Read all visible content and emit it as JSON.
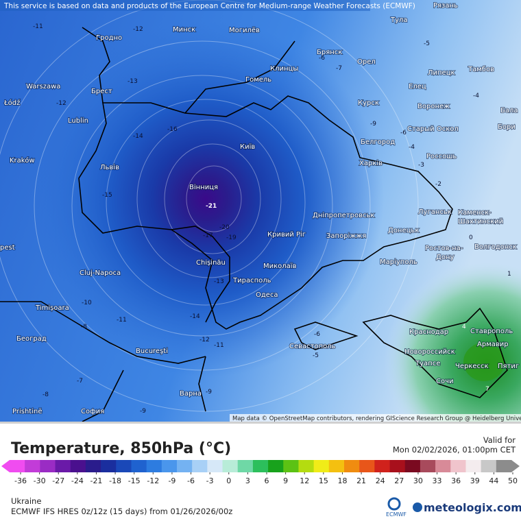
{
  "header": {
    "notice": "This service is based on data and products of the European Centre for Medium-range Weather Forecasts (ECMWF)"
  },
  "map": {
    "attribution": "Map data © OpenStreetMap contributors, rendering GIScience Research Group @ Heidelberg University",
    "cities": [
      "Гродно",
      "Минск",
      "Могилёв",
      "Тула",
      "Рязань",
      "Warszawa",
      "Брест",
      "Гомель",
      "Клинцы",
      "Брянск",
      "Орел",
      "Липецк",
      "Тамбов",
      "Łódź",
      "Lublin",
      "Елец",
      "Курск",
      "Воронеж",
      "Старый Оскол",
      "Kraków",
      "Львів",
      "Київ",
      "Белгород",
      "Харків",
      "Россошь",
      "Вінниця",
      "Луганськ",
      "Каменск-",
      "Шахтинский",
      "Дніпропетровськ",
      "Донецьк",
      "Кривий Ріг",
      "Запоріжжя",
      "Ростов-на-",
      "Дону",
      "Волгодонск",
      "Chișinău",
      "Cluj-Napoca",
      "Миколаїв",
      "Маріуполь",
      "Тирасполь",
      "Одеса",
      "Timișoara",
      "Краснодар",
      "Ставрополь",
      "Армавир",
      "Београд",
      "Севастополь",
      "Новороссийск",
      "Bucureşti",
      "Туапсе",
      "Черкесск",
      "Пятиг",
      "Сочи",
      "Варна",
      "Prishtinë",
      "София",
      "pest",
      "Бала",
      "Бори"
    ],
    "contour_labels": [
      -11,
      -12,
      -13,
      -12,
      -14,
      -16,
      -15,
      -21,
      -17,
      -19,
      -20,
      -13,
      -14,
      -12,
      -11,
      -10,
      -11,
      -8,
      -7,
      -8,
      -9,
      -9,
      -6,
      -5,
      -9,
      -6,
      -4,
      -3,
      -2,
      -7,
      -6,
      -5,
      -4,
      0,
      1,
      4,
      7
    ]
  },
  "legend": {
    "title": "Temperature, 850hPa (°C)",
    "valid_label": "Valid for",
    "valid_time": "Mon 02/02/2026, 01:00pm CET",
    "ticks": [
      -36,
      -30,
      -27,
      -24,
      -21,
      -18,
      -15,
      -12,
      -9,
      -6,
      -3,
      0,
      3,
      6,
      9,
      12,
      15,
      18,
      21,
      24,
      27,
      30,
      33,
      36,
      39,
      44,
      50
    ],
    "colors": [
      "#f04cf0",
      "#c23cd8",
      "#9a2cc4",
      "#6a1aa8",
      "#4a108e",
      "#2a1c8c",
      "#1a2e9e",
      "#1a48b8",
      "#1f62cf",
      "#2d7ce0",
      "#4a96ec",
      "#74b2f2",
      "#a8d0f6",
      "#d6e8f8",
      "#b8ecd8",
      "#6fd8a6",
      "#2cbf5c",
      "#18a21c",
      "#5cc214",
      "#b4dc10",
      "#f0ec18",
      "#f4c010",
      "#f08c10",
      "#e8561a",
      "#d0221c",
      "#a8101c",
      "#7a0a20",
      "#a84a5c",
      "#d88a98",
      "#f0c4cc",
      "#f4ecee",
      "#c8c8c8",
      "#8c8c8c"
    ]
  },
  "footer": {
    "region": "Ukraine",
    "model": "ECMWF IFS HRES 0z/12z (15 days) from  01/26/2026/00z",
    "ecmwf": "ECMWF",
    "brand": "meteologix.com"
  }
}
